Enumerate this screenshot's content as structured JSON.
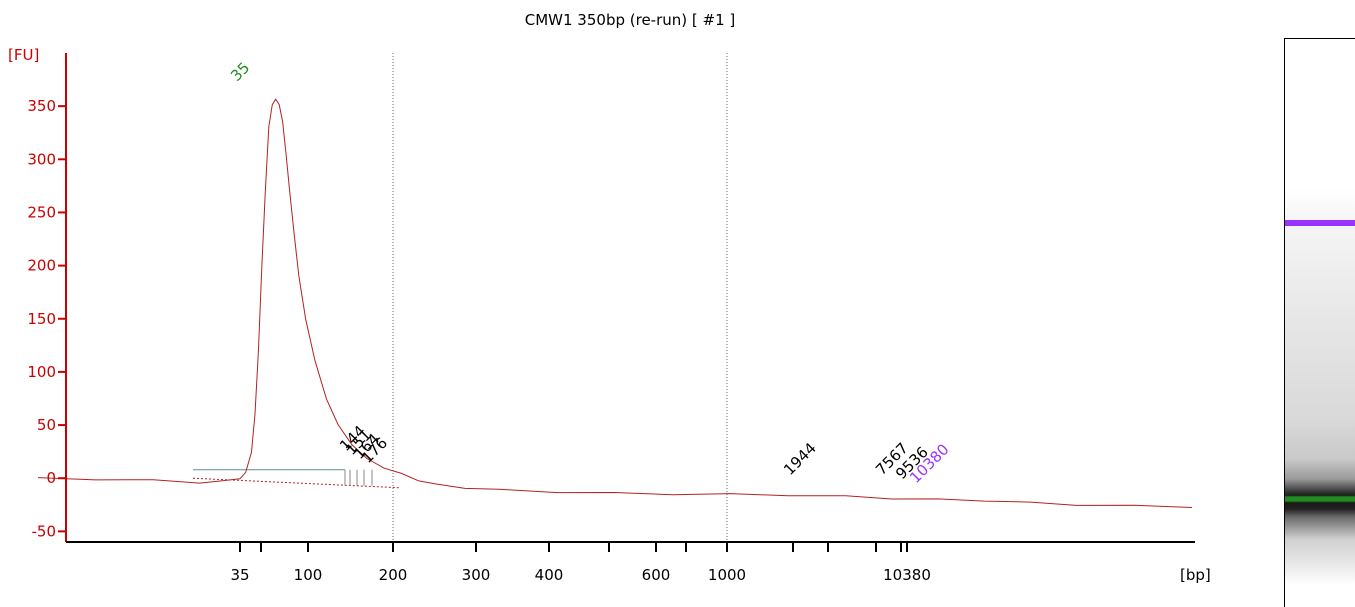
{
  "chart_data": {
    "type": "line",
    "title": "CMW1 350bp (re-run)  [ #1 ]",
    "ylabel": "[FU]",
    "xlabel": "[bp]",
    "ylim": [
      -60,
      400
    ],
    "yticks": [
      -50,
      0,
      50,
      100,
      150,
      200,
      250,
      300,
      350
    ],
    "xticks": [
      "35",
      "",
      "100",
      "200",
      "300",
      "400",
      "",
      "600",
      "",
      "1000",
      "",
      "",
      "",
      "",
      "10380"
    ],
    "gridlines_at": [
      "200",
      "1000"
    ],
    "grid": false,
    "series": [
      {
        "color": "#b22222",
        "points": [
          [
            0.0,
            0
          ],
          [
            0.05,
            -1
          ],
          [
            0.1,
            -2
          ],
          [
            0.14,
            -4
          ],
          [
            0.16,
            -3
          ],
          [
            0.175,
            0
          ],
          [
            0.18,
            5
          ],
          [
            0.185,
            25
          ],
          [
            0.188,
            60
          ],
          [
            0.191,
            120
          ],
          [
            0.194,
            200
          ],
          [
            0.197,
            270
          ],
          [
            0.2,
            330
          ],
          [
            0.203,
            352
          ],
          [
            0.206,
            356
          ],
          [
            0.209,
            352
          ],
          [
            0.212,
            335
          ],
          [
            0.215,
            305
          ],
          [
            0.218,
            270
          ],
          [
            0.222,
            230
          ],
          [
            0.226,
            190
          ],
          [
            0.232,
            150
          ],
          [
            0.24,
            110
          ],
          [
            0.25,
            75
          ],
          [
            0.26,
            50
          ],
          [
            0.272,
            32
          ],
          [
            0.285,
            18
          ],
          [
            0.3,
            10
          ],
          [
            0.315,
            4
          ],
          [
            0.33,
            -2
          ],
          [
            0.345,
            -6
          ],
          [
            0.37,
            -9
          ],
          [
            0.4,
            -11
          ],
          [
            0.45,
            -13
          ],
          [
            0.5,
            -14
          ],
          [
            0.55,
            -15
          ],
          [
            0.6,
            -15
          ],
          [
            0.65,
            -16
          ],
          [
            0.7,
            -17
          ],
          [
            0.74,
            -19
          ],
          [
            0.78,
            -20
          ],
          [
            0.82,
            -21
          ],
          [
            0.86,
            -23
          ],
          [
            0.9,
            -25
          ],
          [
            0.95,
            -26
          ],
          [
            1.0,
            -27
          ]
        ]
      }
    ],
    "peaks": [
      {
        "label": "35",
        "color": "#228b22"
      },
      {
        "label": "144",
        "color": "#000000"
      },
      {
        "label": "151",
        "color": "#000000"
      },
      {
        "label": "164",
        "color": "#000000"
      },
      {
        "label": "176",
        "color": "#000000"
      },
      {
        "label": "1944",
        "color": "#000000"
      },
      {
        "label": "7567",
        "color": "#000000"
      },
      {
        "label": "9536",
        "color": "#000000"
      },
      {
        "label": "10380",
        "color": "#9933ff"
      }
    ],
    "colors": {
      "axis": "#cc0000",
      "trace": "#b22222",
      "marker_upper": "#9933ff",
      "marker_lower": "#228b22",
      "baseline": "#5f8f8f"
    }
  },
  "gel_lane": {
    "band_upper_color": "#9933ff",
    "band_lower_color": "#228b22"
  }
}
